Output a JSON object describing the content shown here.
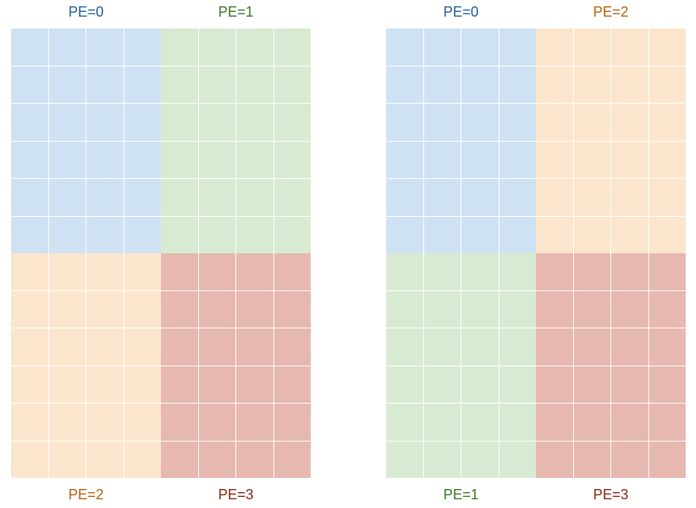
{
  "colors": {
    "pe0_fill": "#cfe2f3",
    "pe1_fill": "#d9ead3",
    "pe2_fill": "#fce5cd",
    "pe3_fill": "#e6b8af",
    "pe0_text": "#1f5c99",
    "pe1_text": "#38761d",
    "pe2_text": "#b45f06",
    "pe3_text": "#85200c"
  },
  "panels": [
    {
      "top_labels": [
        "PE=0",
        "PE=1"
      ],
      "bottom_labels": [
        "PE=2",
        "PE=3"
      ],
      "quadrants": [
        {
          "position": "top-left",
          "pe": 0
        },
        {
          "position": "top-right",
          "pe": 1
        },
        {
          "position": "bottom-left",
          "pe": 2
        },
        {
          "position": "bottom-right",
          "pe": 3
        }
      ]
    },
    {
      "top_labels": [
        "PE=0",
        "PE=2"
      ],
      "bottom_labels": [
        "PE=1",
        "PE=3"
      ],
      "quadrants": [
        {
          "position": "top-left",
          "pe": 0
        },
        {
          "position": "top-right",
          "pe": 2
        },
        {
          "position": "bottom-left",
          "pe": 1
        },
        {
          "position": "bottom-right",
          "pe": 3
        }
      ]
    }
  ],
  "block_grid": {
    "rows": 6,
    "cols": 4
  }
}
